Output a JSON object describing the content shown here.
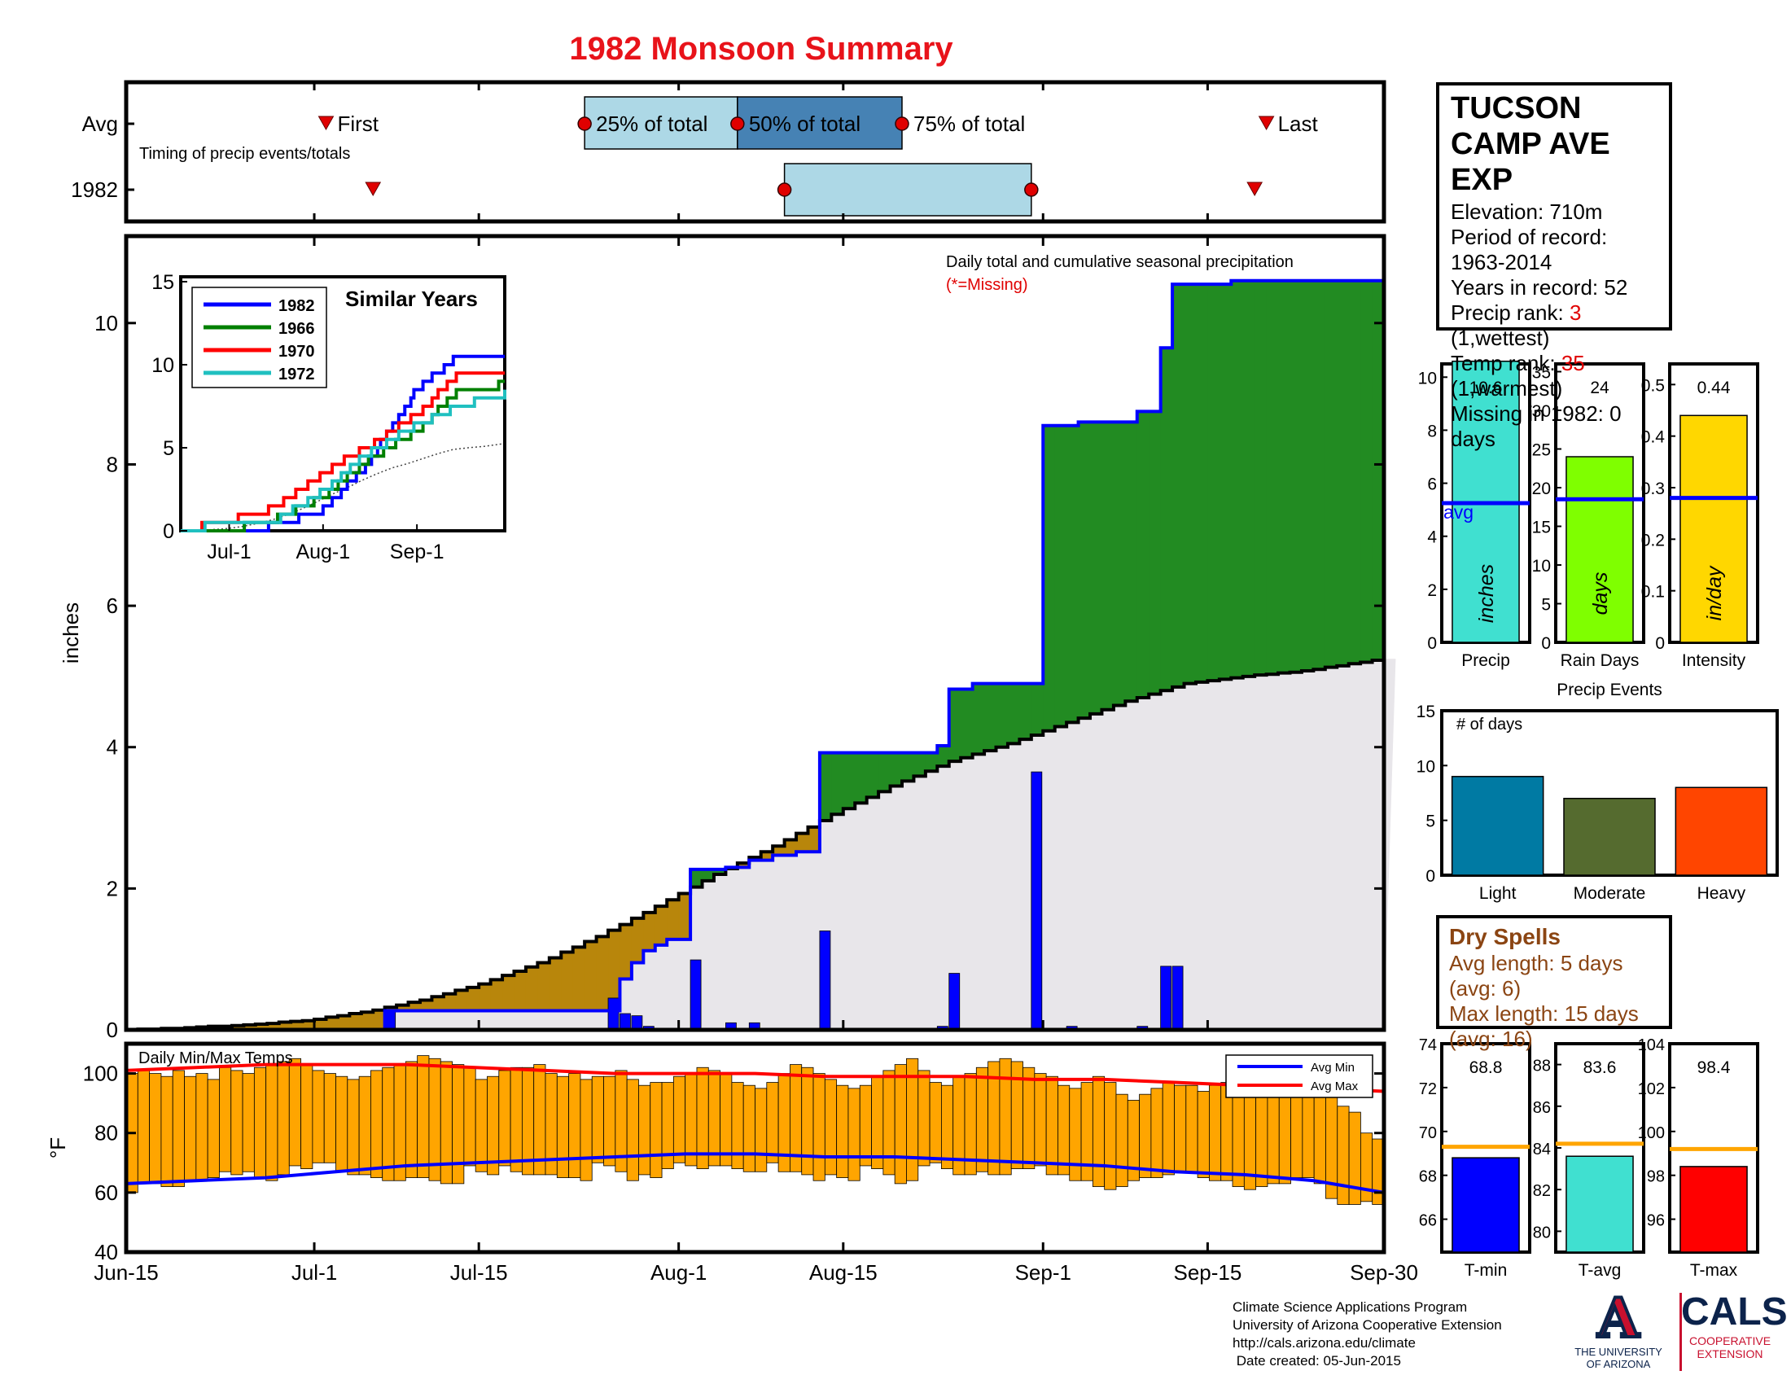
{
  "title": "1982 Monsoon Summary",
  "colors": {
    "title": "#e8131a",
    "cumulative_avg_fill": "#e8e6ea",
    "deficit_fill": "#b8860b",
    "surplus_fill": "#228B22",
    "year_line": "#0000ff",
    "daily_bar": "#0000ff",
    "temp_bar": "#ffa500",
    "avg_min": "#0000ff",
    "avg_max": "#ff0000",
    "precip_bar": "#40e0d0",
    "raindays_bar": "#7fff00",
    "intensity_bar": "#ffd700",
    "light": "#007aa3",
    "moderate": "#556b2f",
    "heavy": "#ff4500",
    "tmin": "#0000ff",
    "tavg": "#40e0d0",
    "tmax": "#ff0000",
    "avg_line_temp": "#ffa500",
    "dry_text": "#8B4513"
  },
  "timing": {
    "label": "Timing of precip events/totals",
    "rows": [
      "Avg",
      "1982"
    ],
    "avg": {
      "first": "Jul-2",
      "q25": "Jul-24",
      "q50": "Aug-6",
      "q75": "Aug-20",
      "last": "Sep-20"
    },
    "year": {
      "first": "Jul-6",
      "q25": "Aug-10",
      "q75": "Aug-31",
      "last": "Sep-19"
    },
    "labels": {
      "first": "First",
      "q25": "25% of total",
      "q50": "50% of total",
      "q75": "75% of total",
      "last": "Last"
    }
  },
  "main_chart": {
    "ylabel": "inches",
    "ylim": [
      0,
      11
    ],
    "yticks": [
      "0",
      "2",
      "4",
      "6",
      "8",
      "10"
    ],
    "xticks": [
      "Jun-15",
      "Jul-1",
      "Jul-15",
      "Aug-1",
      "Aug-15",
      "Sep-1",
      "Sep-15",
      "Sep-30"
    ],
    "annotation": "Daily total and cumulative seasonal precipitation",
    "missing_note": "(*=Missing)"
  },
  "chart_data": [
    {
      "type": "area",
      "series": [
        {
          "name": "1982",
          "x": [
            "Jun-15",
            "Jul-6",
            "Jul-7",
            "Jul-26",
            "Jul-27",
            "Jul-28",
            "Jul-29",
            "Jul-30",
            "Jul-31",
            "Aug-1",
            "Aug-2",
            "Aug-5",
            "Aug-7",
            "Aug-9",
            "Aug-11",
            "Aug-12",
            "Aug-13",
            "Aug-23",
            "Aug-24",
            "Aug-26",
            "Aug-31",
            "Sep-1",
            "Sep-4",
            "Sep-9",
            "Sep-11",
            "Sep-12",
            "Sep-17",
            "Sep-30"
          ],
          "values": [
            0.0,
            0.0,
            0.27,
            0.27,
            0.72,
            0.95,
            1.12,
            1.2,
            1.28,
            1.28,
            2.27,
            2.3,
            2.4,
            2.47,
            2.52,
            2.52,
            3.92,
            4.02,
            4.82,
            4.9,
            4.9,
            8.55,
            8.6,
            8.75,
            9.65,
            10.55,
            10.6,
            10.6
          ]
        },
        {
          "name": "Average",
          "x": [
            "Jun-15",
            "Jun-20",
            "Jun-25",
            "Jun-30",
            "Jul-5",
            "Jul-10",
            "Jul-15",
            "Jul-20",
            "Jul-25",
            "Jul-30",
            "Aug-4",
            "Aug-9",
            "Aug-14",
            "Aug-19",
            "Aug-24",
            "Aug-29",
            "Sep-3",
            "Sep-8",
            "Sep-13",
            "Sep-18",
            "Sep-23",
            "Sep-30"
          ],
          "values": [
            0.0,
            0.03,
            0.07,
            0.13,
            0.25,
            0.42,
            0.65,
            0.95,
            1.32,
            1.75,
            2.2,
            2.6,
            3.05,
            3.45,
            3.8,
            4.05,
            4.35,
            4.65,
            4.9,
            5.0,
            5.08,
            5.25
          ]
        }
      ],
      "daily_bars": {
        "name": "Daily total",
        "x": [
          "Jul-7",
          "Jul-26",
          "Jul-27",
          "Jul-28",
          "Jul-29",
          "Aug-2",
          "Aug-5",
          "Aug-7",
          "Aug-13",
          "Aug-23",
          "Aug-24",
          "Aug-31",
          "Sep-3",
          "Sep-9",
          "Sep-11",
          "Sep-12",
          "Sep-17"
        ],
        "values": [
          0.27,
          0.45,
          0.23,
          0.2,
          0.05,
          0.99,
          0.1,
          0.1,
          1.4,
          0.05,
          0.8,
          3.65,
          0.05,
          0.05,
          0.9,
          0.9,
          0.02
        ]
      }
    },
    {
      "type": "line",
      "title": "Similar Years",
      "x": [
        "Jun-15",
        "Jul-1",
        "Jul-15",
        "Aug-1",
        "Aug-15",
        "Sep-1",
        "Sep-15",
        "Sep-30"
      ],
      "series": [
        {
          "name": "1982",
          "values": [
            0.0,
            0.0,
            0.27,
            1.28,
            3.92,
            8.55,
            10.6,
            10.6
          ]
        },
        {
          "name": "1966",
          "values": [
            0.0,
            0.1,
            0.6,
            2.0,
            4.2,
            6.0,
            8.5,
            8.8
          ]
        },
        {
          "name": "1970",
          "values": [
            0.0,
            0.6,
            1.3,
            3.5,
            5.0,
            7.0,
            9.5,
            9.5
          ]
        },
        {
          "name": "1972",
          "values": [
            0.0,
            0.5,
            0.5,
            2.4,
            4.6,
            6.4,
            7.5,
            8.3
          ]
        }
      ],
      "ylim": [
        0,
        15
      ],
      "yticks": [
        "0",
        "5",
        "10",
        "15"
      ],
      "xticks": [
        "Jul-1",
        "Aug-1",
        "Sep-1"
      ]
    },
    {
      "type": "bar",
      "title": "Daily Min/Max Temps",
      "ylabel": "°F",
      "ylim": [
        40,
        110
      ],
      "yticks": [
        "40",
        "60",
        "80",
        "100"
      ],
      "legend": [
        "Avg Min",
        "Avg Max"
      ],
      "avg_min": [
        63,
        64,
        65,
        67,
        69,
        70,
        71,
        72,
        73,
        73,
        72,
        72,
        71,
        70,
        69,
        67,
        66,
        64,
        60
      ],
      "avg_max": [
        101,
        102,
        103,
        103,
        103,
        102,
        101,
        100,
        100,
        100,
        99,
        99,
        99,
        98,
        98,
        97,
        96,
        95,
        94
      ],
      "daily_min": [
        60,
        63,
        63,
        62,
        62,
        64,
        64,
        65,
        67,
        66,
        67,
        65,
        64,
        66,
        69,
        68,
        70,
        70,
        67,
        66,
        66,
        65,
        64,
        64,
        65,
        65,
        64,
        63,
        63,
        69,
        67,
        66,
        69,
        67,
        66,
        66,
        66,
        65,
        65,
        64,
        70,
        69,
        67,
        64,
        66,
        65,
        68,
        70,
        69,
        68,
        69,
        69,
        68,
        67,
        67,
        70,
        67,
        67,
        66,
        64,
        66,
        65,
        64,
        69,
        68,
        66,
        63,
        64,
        69,
        70,
        68,
        66,
        66,
        67,
        66,
        66,
        68,
        68,
        69,
        66,
        66,
        64,
        64,
        62,
        61,
        62,
        64,
        65,
        65,
        66,
        67,
        67,
        65,
        64,
        64,
        62,
        61,
        62,
        63,
        63,
        65,
        65,
        63,
        58,
        56,
        56,
        57,
        56
      ],
      "daily_max": [
        100,
        101,
        100,
        99,
        101,
        99,
        100,
        98,
        102,
        101,
        100,
        102,
        103,
        104,
        105,
        103,
        101,
        100,
        99,
        98,
        99,
        101,
        102,
        103,
        104,
        106,
        105,
        104,
        103,
        102,
        98,
        99,
        101,
        102,
        102,
        103,
        100,
        99,
        100,
        98,
        99,
        99,
        101,
        98,
        96,
        97,
        97,
        99,
        100,
        102,
        101,
        100,
        97,
        96,
        95,
        97,
        100,
        103,
        102,
        100,
        98,
        96,
        95,
        96,
        99,
        101,
        103,
        105,
        101,
        97,
        96,
        99,
        100,
        102,
        104,
        105,
        104,
        102,
        100,
        99,
        96,
        95,
        97,
        99,
        97,
        93,
        91,
        93,
        95,
        97,
        96,
        96,
        94,
        96,
        97,
        96,
        96,
        97,
        96,
        95,
        96,
        95,
        96,
        94,
        89,
        87,
        80,
        78
      ],
      "x_start": "Jun-15",
      "x_end": "Sep-30"
    },
    {
      "type": "bar",
      "categories": [
        "Precip",
        "Rain Days",
        "Intensity"
      ],
      "values": [
        10.6,
        24,
        0.44
      ],
      "averages": [
        5.25,
        18.5,
        0.28
      ],
      "value_labels": [
        "10.6",
        "24",
        "0.44"
      ],
      "units": [
        "inches",
        "days",
        "in/day"
      ],
      "avg_label": "avg",
      "ylims": [
        [
          0,
          10.5
        ],
        [
          0,
          36
        ],
        [
          0,
          0.54
        ]
      ],
      "yticks": [
        [
          "0",
          "2",
          "4",
          "6",
          "8",
          "10"
        ],
        [
          "0",
          "5",
          "10",
          "15",
          "20",
          "25",
          "30",
          "35"
        ],
        [
          "0",
          "0.1",
          "0.2",
          "0.3",
          "0.4",
          "0.5"
        ]
      ]
    },
    {
      "type": "bar",
      "title": "Precip Events",
      "ylabel": "# of days",
      "categories": [
        "Light",
        "Moderate",
        "Heavy"
      ],
      "values": [
        9,
        7,
        8
      ],
      "ylim": [
        0,
        15
      ],
      "yticks": [
        "0",
        "5",
        "10",
        "15"
      ]
    },
    {
      "type": "bar",
      "categories": [
        "T-min",
        "T-avg",
        "T-max"
      ],
      "values": [
        68.8,
        83.6,
        98.4
      ],
      "averages": [
        69.3,
        84.2,
        99.2
      ],
      "value_labels": [
        "68.8",
        "83.6",
        "98.4"
      ],
      "ylims": [
        [
          64.5,
          74
        ],
        [
          79,
          89
        ],
        [
          94.5,
          104
        ]
      ],
      "yticks": [
        [
          "66",
          "68",
          "70",
          "72",
          "74"
        ],
        [
          "80",
          "82",
          "84",
          "86",
          "88"
        ],
        [
          "96",
          "98",
          "100",
          "102",
          "104"
        ]
      ]
    }
  ],
  "station": {
    "name": "TUCSON CAMP AVE EXP",
    "lines": [
      {
        "label": "Elevation: ",
        "value": "710m",
        "suffix": ""
      },
      {
        "label": "Period of record: ",
        "value": "1963-2014",
        "suffix": ""
      },
      {
        "label": "Years in record: ",
        "value": "52",
        "suffix": ""
      },
      {
        "label": "Precip rank: ",
        "value": "3",
        "suffix": " (1,wettest)"
      },
      {
        "label": "Temp rank: ",
        "value": "35",
        "suffix": " (1,warmest)"
      },
      {
        "label": "Missing in 1982: ",
        "value": "0 days",
        "suffix": ""
      }
    ]
  },
  "dry_spells": {
    "title": "Dry Spells",
    "avg_length": "Avg length: 5 days (avg: 6)",
    "max_length": "Max length: 15 days (avg: 16)"
  },
  "credits": {
    "line1": "Climate Science Applications Program",
    "line2": "University of Arizona Cooperative Extension",
    "line3": "http://cals.arizona.edu/climate",
    "line4": " Date created: 05-Jun-2015"
  },
  "logos": {
    "ua_letter": "A",
    "ua_text1": "THE UNIVERSITY",
    "ua_text2": "OF ARIZONA",
    "cals": "CALS",
    "cals_sub1": "COOPERATIVE",
    "cals_sub2": "EXTENSION"
  }
}
